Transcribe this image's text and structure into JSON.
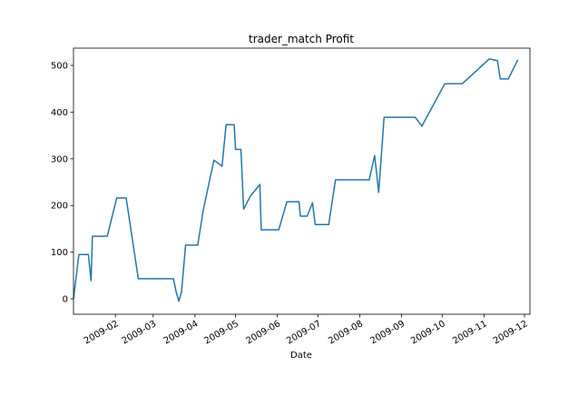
{
  "chart_data": {
    "type": "line",
    "title": "trader_match Profit",
    "x_label": "Date",
    "x": [
      "2009-01-01",
      "2009-01-05",
      "2009-01-12",
      "2009-01-14",
      "2009-01-15",
      "2009-01-26",
      "2009-02-02",
      "2009-02-09",
      "2009-02-18",
      "2009-03-16",
      "2009-03-18",
      "2009-03-20",
      "2009-03-22",
      "2009-03-25",
      "2009-04-03",
      "2009-04-07",
      "2009-04-15",
      "2009-04-21",
      "2009-04-24",
      "2009-04-30",
      "2009-05-01",
      "2009-05-05",
      "2009-05-07",
      "2009-05-12",
      "2009-05-19",
      "2009-05-20",
      "2009-06-02",
      "2009-06-08",
      "2009-06-17",
      "2009-06-18",
      "2009-06-23",
      "2009-06-27",
      "2009-06-29",
      "2009-07-09",
      "2009-07-14",
      "2009-08-08",
      "2009-08-12",
      "2009-08-15",
      "2009-08-19",
      "2009-09-11",
      "2009-09-16",
      "2009-10-03",
      "2009-10-16",
      "2009-11-05",
      "2009-11-11",
      "2009-11-13",
      "2009-11-19",
      "2009-11-26"
    ],
    "series": [
      {
        "name": "Profit",
        "color": "#1f77b4",
        "values": [
          0,
          95,
          95,
          39,
          134,
          134,
          216,
          216,
          43,
          43,
          15,
          -5,
          15,
          115,
          115,
          189,
          297,
          284,
          373,
          373,
          320,
          320,
          192,
          220,
          245,
          148,
          148,
          208,
          208,
          177,
          177,
          206,
          159,
          159,
          255,
          255,
          307,
          228,
          389,
          389,
          370,
          461,
          461,
          514,
          510,
          471,
          471,
          512
        ]
      }
    ],
    "xlim": [
      "2009-01-01",
      "2009-12-05"
    ],
    "xticks": [
      {
        "value": "2009-02-01",
        "label": "2009-02"
      },
      {
        "value": "2009-03-01",
        "label": "2009-03"
      },
      {
        "value": "2009-04-01",
        "label": "2009-04"
      },
      {
        "value": "2009-05-01",
        "label": "2009-05"
      },
      {
        "value": "2009-06-01",
        "label": "2009-06"
      },
      {
        "value": "2009-07-01",
        "label": "2009-07"
      },
      {
        "value": "2009-08-01",
        "label": "2009-08"
      },
      {
        "value": "2009-09-01",
        "label": "2009-09"
      },
      {
        "value": "2009-10-01",
        "label": "2009-10"
      },
      {
        "value": "2009-11-01",
        "label": "2009-11"
      },
      {
        "value": "2009-12-01",
        "label": "2009-12"
      }
    ],
    "ylim": [
      -33,
      537
    ],
    "yticks": [
      0,
      100,
      200,
      300,
      400,
      500
    ]
  }
}
